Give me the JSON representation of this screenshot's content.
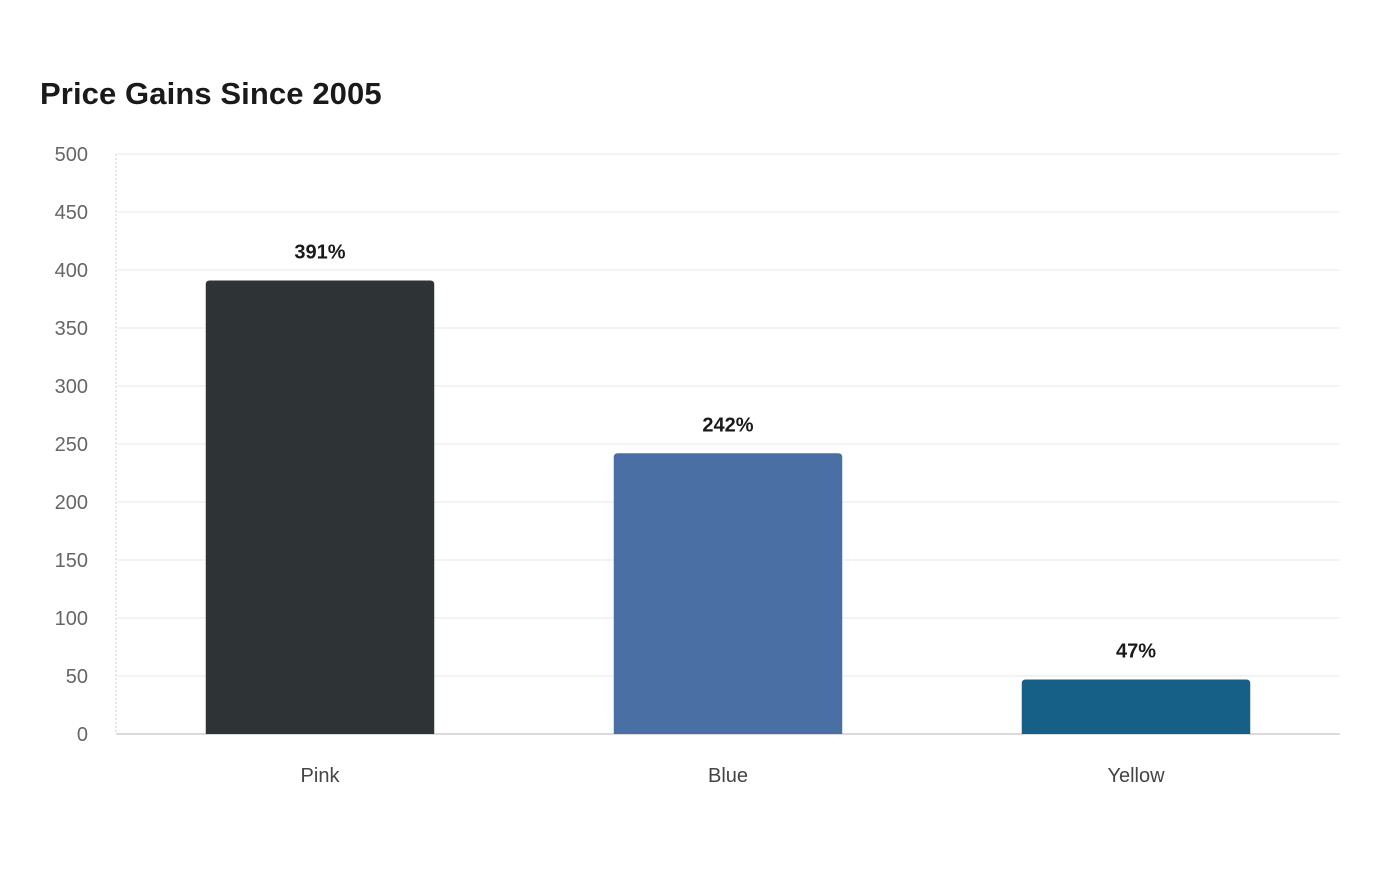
{
  "chart_data": {
    "type": "bar",
    "title": "Price Gains Since 2005",
    "xlabel": "",
    "ylabel": "",
    "categories": [
      "Pink",
      "Blue",
      "Yellow"
    ],
    "values": [
      391,
      242,
      47
    ],
    "data_labels": [
      "391%",
      "242%",
      "47%"
    ],
    "colors": [
      "#2e3436",
      "#4a6fa5",
      "#166088"
    ],
    "ylim": [
      0,
      500
    ],
    "yticks": [
      0,
      50,
      100,
      150,
      200,
      250,
      300,
      350,
      400,
      450,
      500
    ],
    "grid": true,
    "legend": "none"
  }
}
